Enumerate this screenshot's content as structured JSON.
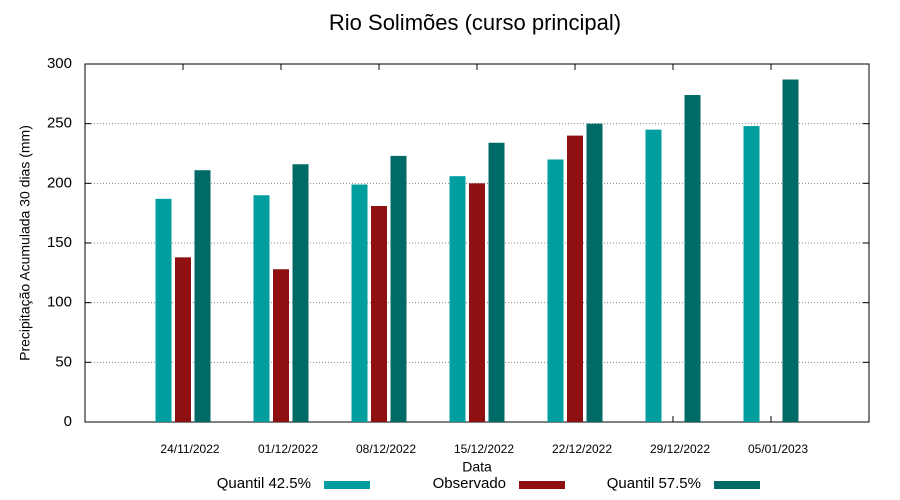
{
  "chart_data": {
    "type": "bar",
    "title": "Rio Solimões (curso principal)",
    "x_label": "Data",
    "y_label": "Precipitação Acumulada 30 dias (mm)",
    "categories": [
      "24/11/2022",
      "01/12/2022",
      "08/12/2022",
      "15/12/2022",
      "22/12/2022",
      "29/12/2022",
      "05/01/2023"
    ],
    "series": [
      {
        "name": "Quantil 42.5%",
        "color": "#009e9e",
        "values": [
          187,
          190,
          199,
          206,
          220,
          245,
          248
        ]
      },
      {
        "name": "Observado",
        "color": "#8e1010",
        "values": [
          138,
          128,
          181,
          200,
          240,
          null,
          null
        ]
      },
      {
        "name": "Quantil 57.5%",
        "color": "#006a66",
        "values": [
          211,
          216,
          223,
          234,
          250,
          274,
          287
        ]
      }
    ],
    "ylim": [
      0,
      300
    ],
    "yticks": [
      0,
      50,
      100,
      150,
      200,
      250,
      300
    ],
    "grid": true,
    "legend": "bottom"
  }
}
